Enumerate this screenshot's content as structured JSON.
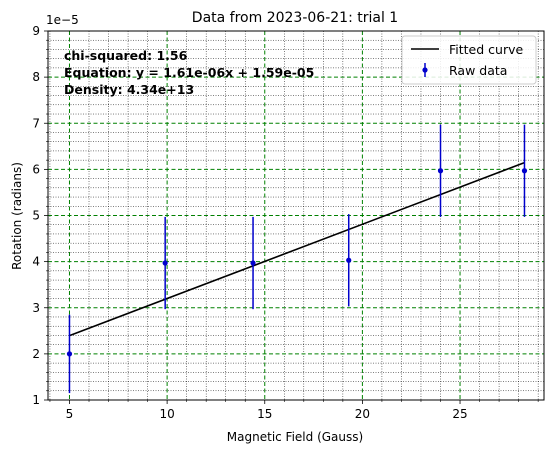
{
  "chart_data": {
    "type": "scatter",
    "title": "Data from 2023-06-21: trial 1",
    "xlabel": "Magnetic Field (Gauss)",
    "ylabel": "Rotation (radians)",
    "y_offset_label": "1e−5",
    "xlim": [
      3.9,
      29.3
    ],
    "ylim": [
      1e-05,
      9e-05
    ],
    "x_ticks": [
      5,
      10,
      15,
      20,
      25
    ],
    "y_ticks": [
      1e-05,
      2e-05,
      3e-05,
      4e-05,
      5e-05,
      6e-05,
      7e-05,
      8e-05,
      9e-05
    ],
    "y_tick_labels": [
      "1",
      "2",
      "3",
      "4",
      "5",
      "6",
      "7",
      "8",
      "9"
    ],
    "grid": "on",
    "legend_position": "top-right",
    "series": [
      {
        "name": "Raw data",
        "kind": "errorbar",
        "color": "#0000cc",
        "points": [
          {
            "x": 5.0,
            "y": 2e-05,
            "yerr_low": 8.5e-06,
            "yerr_high": 8.5e-06
          },
          {
            "x": 9.9,
            "y": 3.97e-05,
            "yerr_low": 1e-05,
            "yerr_high": 1e-05
          },
          {
            "x": 14.4,
            "y": 3.97e-05,
            "yerr_low": 1e-05,
            "yerr_high": 1e-05
          },
          {
            "x": 19.3,
            "y": 4.03e-05,
            "yerr_low": 1e-05,
            "yerr_high": 1e-05
          },
          {
            "x": 24.0,
            "y": 5.97e-05,
            "yerr_low": 1e-05,
            "yerr_high": 1e-05
          },
          {
            "x": 28.3,
            "y": 5.97e-05,
            "yerr_low": 1e-05,
            "yerr_high": 1e-05
          }
        ]
      },
      {
        "name": "Fitted curve",
        "kind": "line",
        "color": "#000000",
        "slope": 1.61e-06,
        "intercept": 1.59e-05,
        "x_range": [
          5.0,
          28.3
        ]
      }
    ],
    "annotations": [
      "chi-squared: 1.56",
      "Equation: y = 1.61e-06x + 1.59e-05",
      "Density: 4.34e+13"
    ]
  }
}
